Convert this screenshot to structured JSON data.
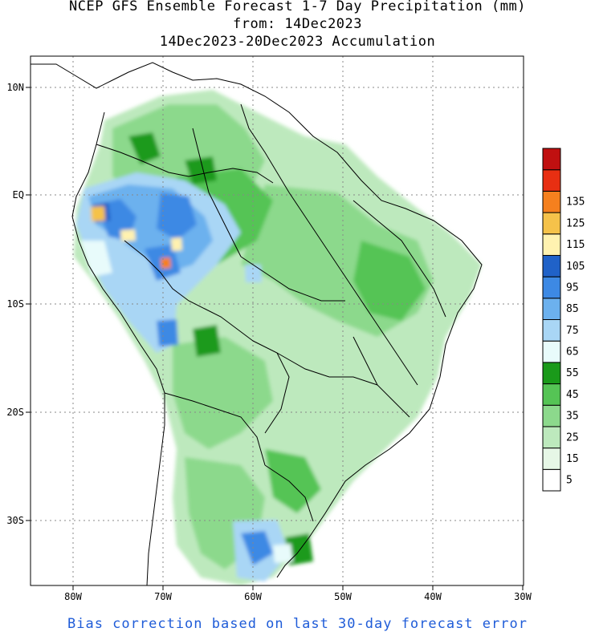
{
  "title": {
    "line1": "NCEP GFS Ensemble Forecast 1-7 Day Precipitation (mm)",
    "line2": "from: 14Dec2023",
    "line3": "14Dec2023-20Dec2023 Accumulation"
  },
  "footnote": "Bias correction based on last 30-day forecast error",
  "map": {
    "region": "South America",
    "lon_range": [
      -85,
      -30
    ],
    "lat_range": [
      -36,
      13
    ],
    "lon_ticks": [
      {
        "value": -80,
        "label": "80W"
      },
      {
        "value": -70,
        "label": "70W"
      },
      {
        "value": -60,
        "label": "60W"
      },
      {
        "value": -50,
        "label": "50W"
      },
      {
        "value": -40,
        "label": "40W"
      },
      {
        "value": -30,
        "label": "30W"
      }
    ],
    "lat_ticks": [
      {
        "value": 10,
        "label": "10N"
      },
      {
        "value": 0,
        "label": "EQ"
      },
      {
        "value": -10,
        "label": "10S"
      },
      {
        "value": -20,
        "label": "20S"
      },
      {
        "value": -30,
        "label": "30S"
      }
    ],
    "gridlines": "dotted",
    "land_color": "#ffffff",
    "border_color": "#000000"
  },
  "legend": {
    "placement": "right",
    "bins": [
      {
        "color": "#ffffff",
        "label": "5"
      },
      {
        "color": "#e6f7e6",
        "label": "15"
      },
      {
        "color": "#bde9bd",
        "label": "25"
      },
      {
        "color": "#8cd98c",
        "label": "35"
      },
      {
        "color": "#55c455",
        "label": "45"
      },
      {
        "color": "#1a9a1a",
        "label": "55"
      },
      {
        "color": "#e8fbfb",
        "label": "65"
      },
      {
        "color": "#a9d6f5",
        "label": "75"
      },
      {
        "color": "#6cb1ee",
        "label": "85"
      },
      {
        "color": "#3d89e4",
        "label": "95"
      },
      {
        "color": "#2062c8",
        "label": "105"
      },
      {
        "color": "#fff2b0",
        "label": "115"
      },
      {
        "color": "#f5c24a",
        "label": "125"
      },
      {
        "color": "#f5801e",
        "label": "135"
      },
      {
        "color": "#e82f12",
        "label": ""
      },
      {
        "color": "#c01010",
        "label": ""
      }
    ]
  }
}
